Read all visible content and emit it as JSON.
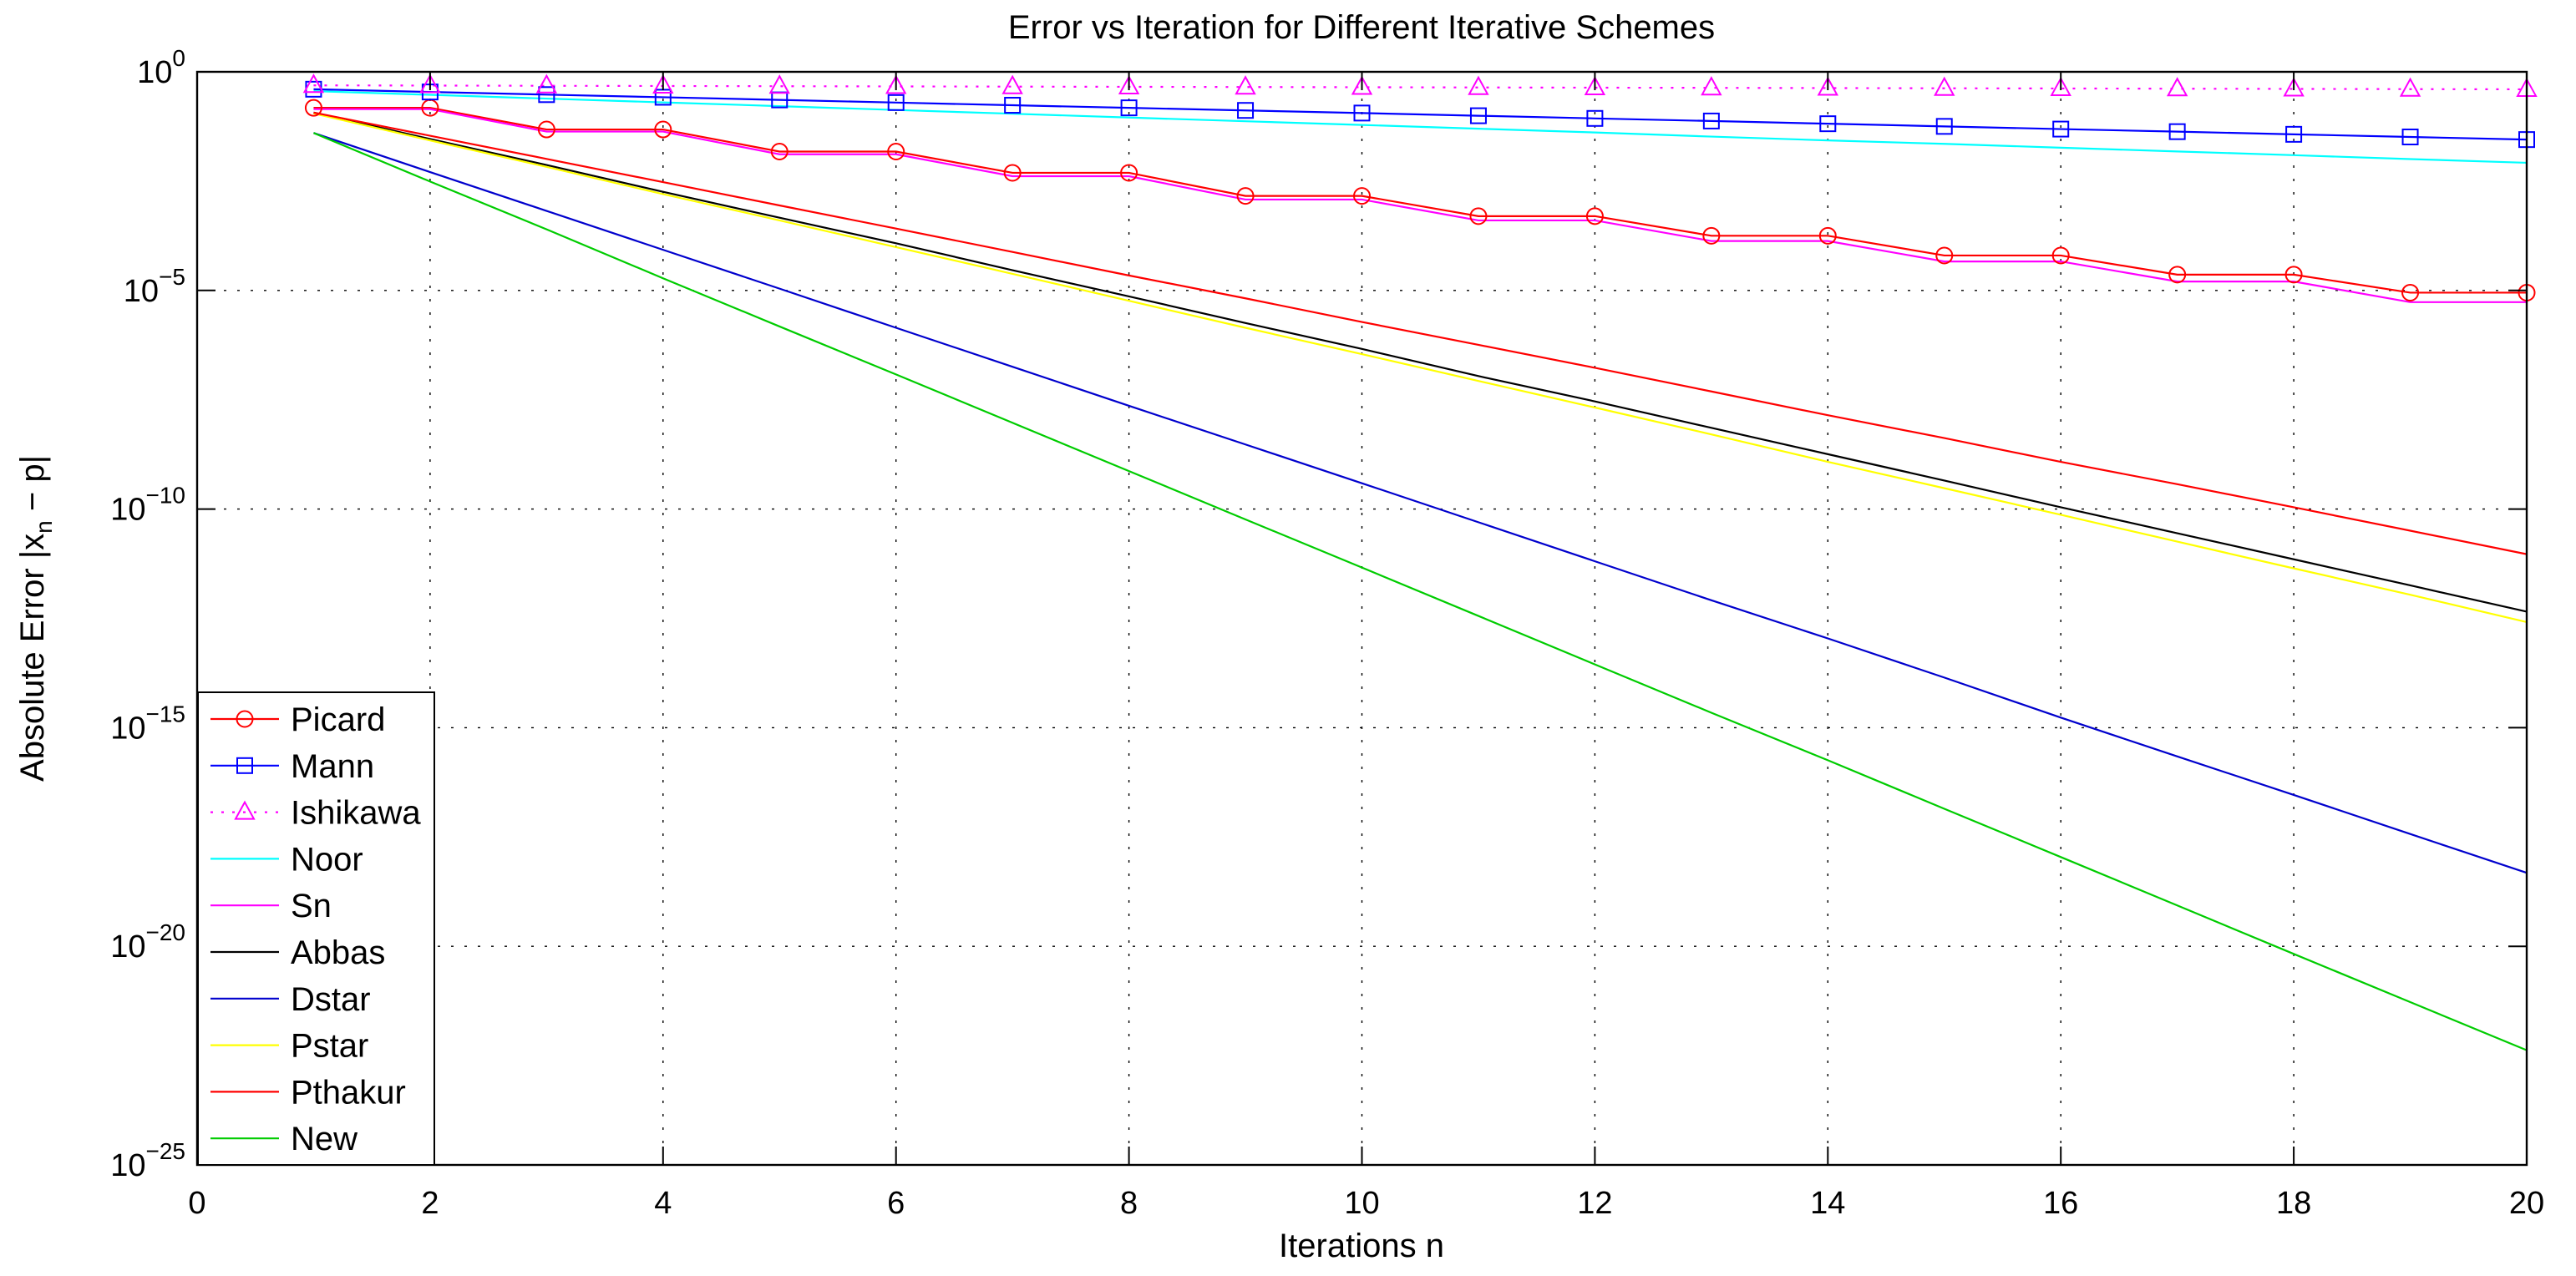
{
  "title": "Error vs Iteration for Different Iterative Schemes",
  "xlabel": "Iterations n",
  "ylabel": {
    "prefix": "Absolute Error |x",
    "sub": "n",
    "suffix": " − p|"
  },
  "axes": {
    "xlim": [
      0,
      20
    ],
    "x_ticks": [
      0,
      2,
      4,
      6,
      8,
      10,
      12,
      14,
      16,
      18,
      20
    ],
    "y_scale": "log",
    "y_tick_exponents": [
      0,
      -5,
      -10,
      -15,
      -20,
      -25
    ],
    "ylim_exponents": [
      -25,
      0
    ],
    "grid": true
  },
  "legend": {
    "position": "southwest"
  },
  "chart_data": {
    "type": "line",
    "yscale": "log",
    "x": [
      1,
      2,
      3,
      4,
      5,
      6,
      7,
      8,
      9,
      10,
      11,
      12,
      13,
      14,
      15,
      16,
      17,
      18,
      19,
      20
    ],
    "series": [
      {
        "name": "Picard",
        "color": "#ff0000",
        "line_style": "solid",
        "marker": "circle",
        "values": [
          0.15,
          0.15,
          0.048,
          0.048,
          0.015,
          0.015,
          0.0049,
          0.0049,
          0.00145,
          0.00145,
          0.0005,
          0.0005,
          0.000178,
          0.000178,
          6.3e-05,
          6.3e-05,
          2.3e-05,
          2.3e-05,
          8.9e-06,
          8.9e-06
        ]
      },
      {
        "name": "Mann",
        "color": "#0000ff",
        "line_style": "solid",
        "marker": "square",
        "values": [
          0.4,
          0.346,
          0.301,
          0.262,
          0.228,
          0.198,
          0.172,
          0.15,
          0.131,
          0.114,
          0.099,
          0.086,
          0.075,
          0.065,
          0.0565,
          0.049,
          0.0428,
          0.0372,
          0.0324,
          0.0282
        ]
      },
      {
        "name": "Ishikawa",
        "color": "#ff00ff",
        "line_style": "dotted",
        "marker": "triangle",
        "values": [
          0.49,
          0.485,
          0.479,
          0.474,
          0.469,
          0.464,
          0.459,
          0.454,
          0.449,
          0.444,
          0.439,
          0.434,
          0.43,
          0.425,
          0.42,
          0.416,
          0.411,
          0.407,
          0.402,
          0.398
        ]
      },
      {
        "name": "Noor",
        "color": "#00ffff",
        "line_style": "solid",
        "marker": null,
        "values": [
          0.363,
          0.298,
          0.244,
          0.2,
          0.164,
          0.134,
          0.11,
          0.09,
          0.074,
          0.061,
          0.05,
          0.041,
          0.033,
          0.027,
          0.0225,
          0.0184,
          0.0151,
          0.0124,
          0.0101,
          0.0083
        ]
      },
      {
        "name": "Sn",
        "color": "#ff00ff",
        "line_style": "solid",
        "marker": null,
        "values": [
          0.14,
          0.14,
          0.043,
          0.043,
          0.013,
          0.013,
          0.0041,
          0.0041,
          0.0012,
          0.0012,
          0.0004,
          0.0004,
          0.000135,
          0.000135,
          4.6e-05,
          4.6e-05,
          1.6e-05,
          1.6e-05,
          5.4e-06,
          5.4e-06
        ]
      },
      {
        "name": "Abbas",
        "color": "#000000",
        "line_style": "solid",
        "marker": null,
        "values": [
          0.117,
          0.029,
          0.0074,
          0.0018,
          0.00046,
          0.00012,
          2.9e-05,
          7.3e-06,
          1.8e-06,
          4.6e-07,
          1.1e-07,
          2.9e-08,
          7.2e-09,
          1.8e-09,
          4.5e-10,
          1.1e-10,
          2.8e-11,
          7.1e-12,
          1.8e-12,
          4.5e-13
        ]
      },
      {
        "name": "Dstar",
        "color": "#0000cd",
        "line_style": "solid",
        "marker": null,
        "values": [
          0.04,
          0.0051,
          0.00066,
          8.5e-05,
          1.1e-05,
          1.4e-06,
          1.8e-07,
          2.3e-08,
          3e-09,
          3.9e-10,
          5e-11,
          6.4e-12,
          8.2e-13,
          1.1e-13,
          1.4e-14,
          1.7e-15,
          2.2e-16,
          2.9e-17,
          3.7e-18,
          4.8e-19
        ]
      },
      {
        "name": "Pstar",
        "color": "#ffff00",
        "line_style": "solid",
        "marker": null,
        "values": [
          0.112,
          0.027,
          0.0067,
          0.0016,
          0.0004,
          9.8e-05,
          2.4e-05,
          5.8e-06,
          1.4e-06,
          3.5e-07,
          8.5e-08,
          2.1e-08,
          5.1e-09,
          1.2e-09,
          3e-10,
          7.4e-11,
          1.8e-11,
          4.4e-12,
          1.1e-12,
          2.6e-13
        ]
      },
      {
        "name": "Pthakur",
        "color": "#ff0000",
        "line_style": "solid",
        "marker": null,
        "values": [
          0.117,
          0.0345,
          0.0102,
          0.003,
          0.00088,
          0.00026,
          7.6e-05,
          2.2e-05,
          6.6e-06,
          1.9e-06,
          5.7e-07,
          1.7e-07,
          4.9e-08,
          1.4e-08,
          4.2e-09,
          1.2e-09,
          3.7e-10,
          1.1e-10,
          3.2e-11,
          9.3e-12
        ]
      },
      {
        "name": "New",
        "color": "#00cc00",
        "line_style": "solid",
        "marker": null,
        "values": [
          0.04,
          0.0031,
          0.00025,
          1.9e-05,
          1.5e-06,
          1.2e-07,
          9.4e-09,
          7.4e-10,
          5.8e-11,
          4.6e-12,
          3.6e-13,
          2.8e-14,
          2.2e-15,
          1.8e-16,
          1.4e-17,
          1.1e-18,
          8.6e-20,
          6.7e-21,
          5.3e-22,
          4.2e-23
        ]
      }
    ]
  }
}
